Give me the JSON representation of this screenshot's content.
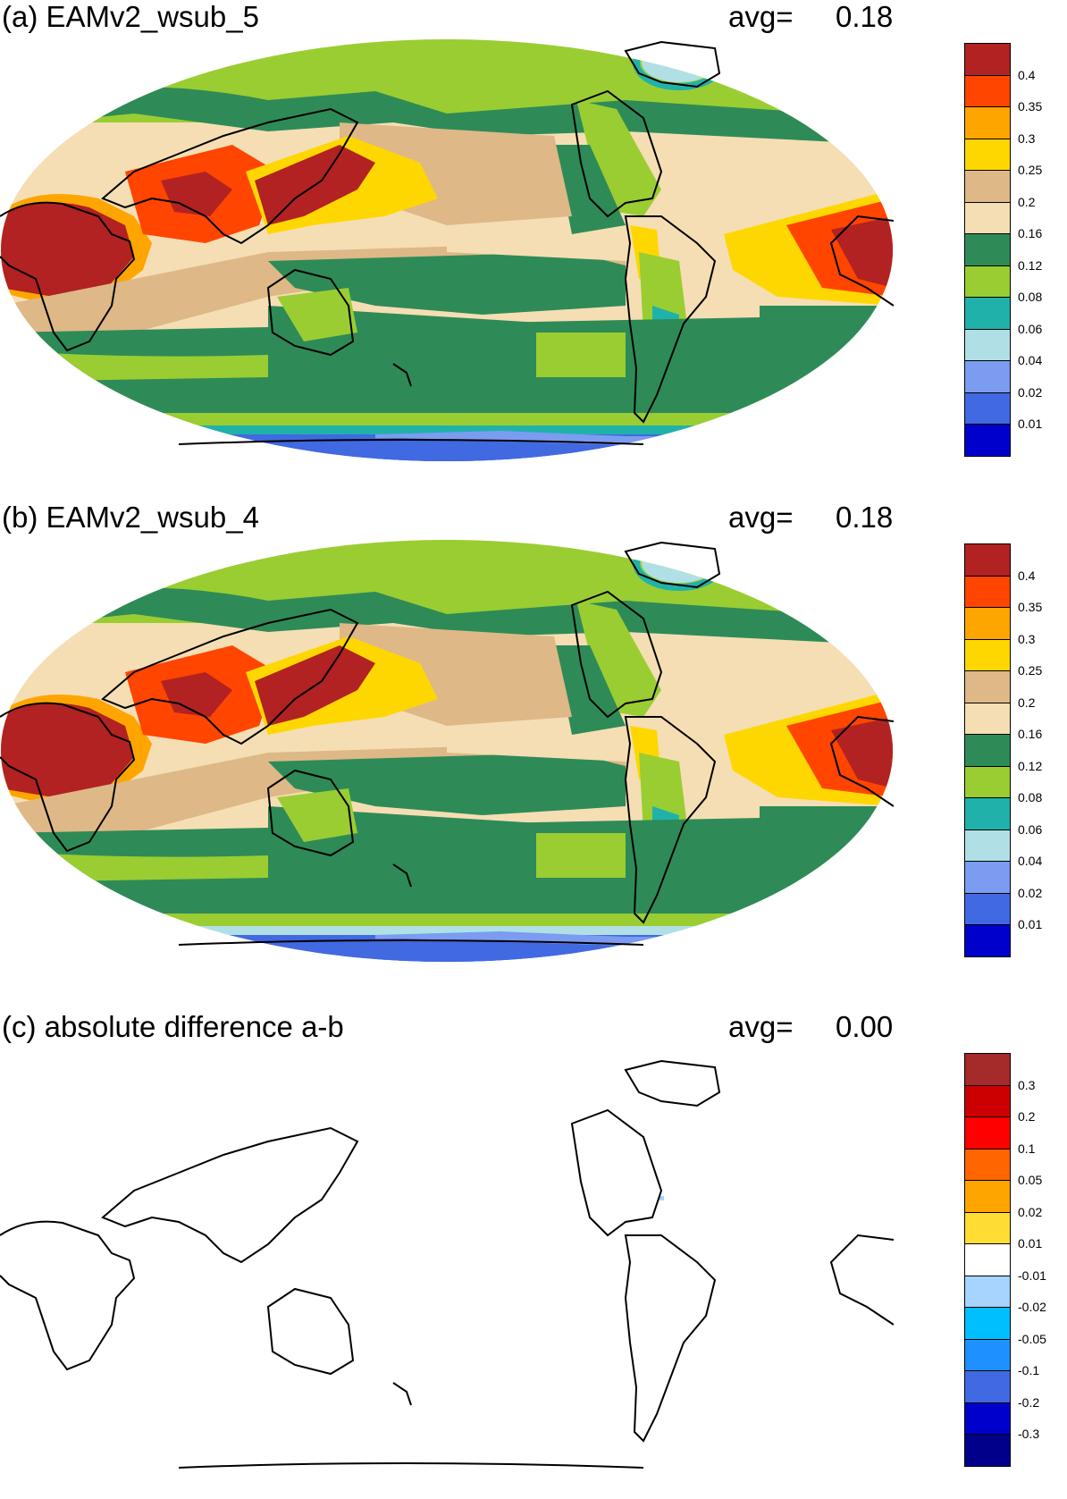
{
  "panels": [
    {
      "id": "a",
      "title": "(a) EAMv2_wsub_5",
      "avg_label": "avg=",
      "avg_value": "0.18",
      "field": "full",
      "colorbar": {
        "colors": [
          "#b22222",
          "#ff4500",
          "#ffa500",
          "#ffd700",
          "#deb887",
          "#f5deb3",
          "#2e8b57",
          "#9acd32",
          "#20b2aa",
          "#b0e0e6",
          "#7b9cf0",
          "#4169e1",
          "#0000cd"
        ],
        "labels": [
          "0.4",
          "0.35",
          "0.3",
          "0.25",
          "0.2",
          "0.16",
          "0.12",
          "0.08",
          "0.06",
          "0.04",
          "0.02",
          "0.01"
        ]
      }
    },
    {
      "id": "b",
      "title": "(b) EAMv2_wsub_4",
      "avg_label": "avg=",
      "avg_value": "0.18",
      "field": "full",
      "colorbar": {
        "colors": [
          "#b22222",
          "#ff4500",
          "#ffa500",
          "#ffd700",
          "#deb887",
          "#f5deb3",
          "#2e8b57",
          "#9acd32",
          "#20b2aa",
          "#b0e0e6",
          "#7b9cf0",
          "#4169e1",
          "#0000cd"
        ],
        "labels": [
          "0.4",
          "0.35",
          "0.3",
          "0.25",
          "0.2",
          "0.16",
          "0.12",
          "0.08",
          "0.06",
          "0.04",
          "0.02",
          "0.01"
        ]
      }
    },
    {
      "id": "c",
      "title": "(c) absolute difference a-b",
      "avg_label": "avg=",
      "avg_value": "0.00",
      "field": "difference",
      "colorbar": {
        "colors": [
          "#a52a2a",
          "#cc0000",
          "#ff0000",
          "#ff6600",
          "#ffa500",
          "#ffdd33",
          "#ffffff",
          "#a6d4ff",
          "#00bfff",
          "#1e90ff",
          "#4169e1",
          "#0000cd",
          "#00008b"
        ],
        "labels": [
          "0.3",
          "0.2",
          "0.1",
          "0.05",
          "0.02",
          "0.01",
          "-0.01",
          "-0.02",
          "-0.05",
          "-0.1",
          "-0.2",
          "-0.3"
        ]
      }
    }
  ]
}
